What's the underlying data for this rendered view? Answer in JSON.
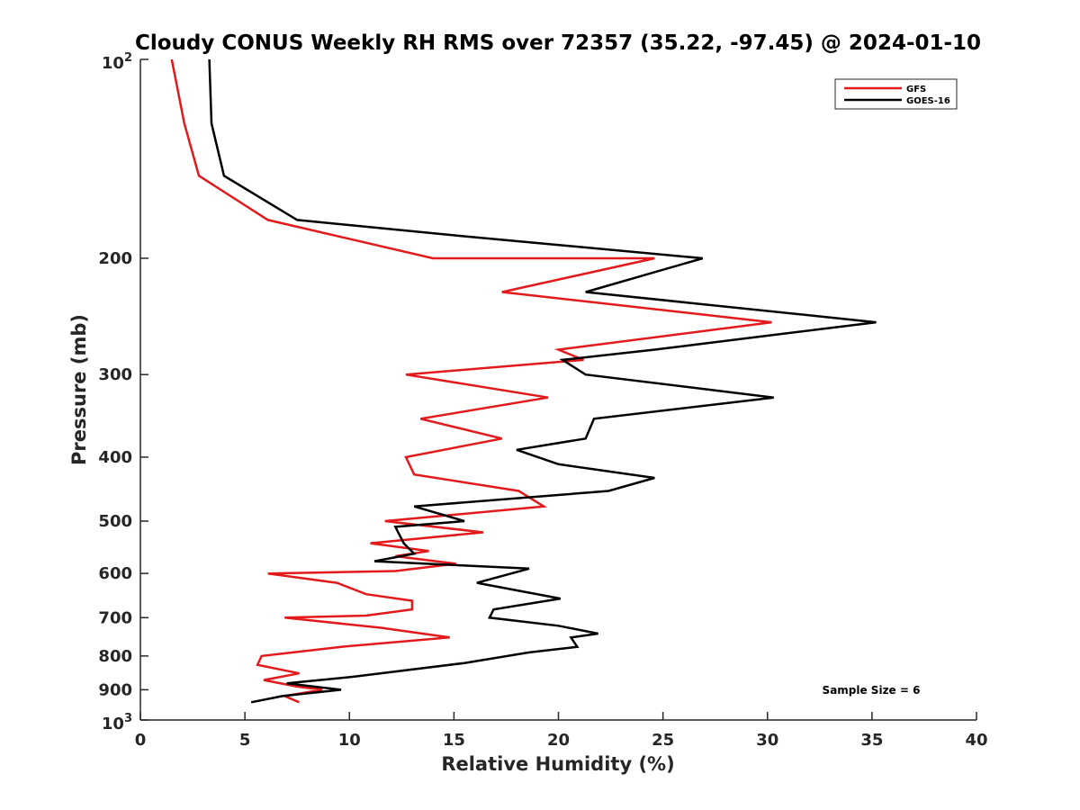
{
  "chart_data": {
    "type": "line",
    "title": "Cloudy CONUS Weekly RH RMS over 72357 (35.22, -97.45) @ 2024-01-10",
    "xlabel": "Relative Humidity (%)",
    "ylabel": "Pressure (mb)",
    "xlim": [
      0,
      40
    ],
    "ylim": [
      100,
      1000
    ],
    "y_scale": "log",
    "y_reversed": true,
    "grid": false,
    "legend_position": "top-right",
    "x_ticks": [
      0,
      5,
      10,
      15,
      20,
      25,
      30,
      35,
      40
    ],
    "x_tick_labels": [
      "0",
      "5",
      "10",
      "15",
      "20",
      "25",
      "30",
      "35",
      "40"
    ],
    "y_ticks": [
      200,
      300,
      400,
      500,
      600,
      700,
      800,
      900
    ],
    "y_tick_labels": [
      "200",
      "300",
      "400",
      "500",
      "600",
      "700",
      "800",
      "900"
    ],
    "y_extreme_labels": {
      "top_base": "10",
      "top_exp": "2",
      "bottom_base": "10",
      "bottom_exp": "3"
    },
    "annotation": "Sample Size = 6",
    "series": [
      {
        "name": "GFS",
        "color": "#e31a1c",
        "points": [
          [
            1.5,
            100
          ],
          [
            2.1,
            125
          ],
          [
            2.8,
            150
          ],
          [
            6.1,
            175
          ],
          [
            14,
            200
          ],
          [
            24.6,
            200
          ],
          [
            17.3,
            225
          ],
          [
            30.2,
            250
          ],
          [
            20,
            275
          ],
          [
            21.2,
            285
          ],
          [
            12.7,
            300
          ],
          [
            19.5,
            325
          ],
          [
            13.4,
            350
          ],
          [
            17.3,
            375
          ],
          [
            12.7,
            400
          ],
          [
            13.1,
            425
          ],
          [
            18.1,
            450
          ],
          [
            19.3,
            475
          ],
          [
            11.7,
            500
          ],
          [
            16.4,
            520
          ],
          [
            11,
            540
          ],
          [
            13.8,
            555
          ],
          [
            12.2,
            565
          ],
          [
            15.1,
            580
          ],
          [
            12.2,
            595
          ],
          [
            6.1,
            600
          ],
          [
            9.4,
            620
          ],
          [
            10.8,
            645
          ],
          [
            13,
            660
          ],
          [
            13,
            680
          ],
          [
            10.8,
            695
          ],
          [
            6.9,
            700
          ],
          [
            11.5,
            725
          ],
          [
            14.8,
            750
          ],
          [
            9.6,
            775
          ],
          [
            5.8,
            800
          ],
          [
            5.6,
            825
          ],
          [
            7.6,
            850
          ],
          [
            5.9,
            870
          ],
          [
            7.5,
            890
          ],
          [
            8.7,
            900
          ],
          [
            6.9,
            920
          ],
          [
            7.6,
            940
          ]
        ]
      },
      {
        "name": "GOES-16",
        "color": "#000000",
        "points": [
          [
            3.3,
            100
          ],
          [
            3.4,
            125
          ],
          [
            4,
            150
          ],
          [
            7.5,
            175
          ],
          [
            15.3,
            185
          ],
          [
            26.9,
            200
          ],
          [
            21.3,
            225
          ],
          [
            35.2,
            250
          ],
          [
            24.6,
            275
          ],
          [
            20.2,
            285
          ],
          [
            21.3,
            300
          ],
          [
            30.3,
            325
          ],
          [
            21.7,
            350
          ],
          [
            21.3,
            375
          ],
          [
            18.0,
            390
          ],
          [
            20.0,
            410
          ],
          [
            24.6,
            430
          ],
          [
            22.4,
            450
          ],
          [
            13.1,
            475
          ],
          [
            15.5,
            500
          ],
          [
            12.2,
            510
          ],
          [
            12.6,
            540
          ],
          [
            13.1,
            560
          ],
          [
            11.2,
            575
          ],
          [
            18.6,
            590
          ],
          [
            16.1,
            620
          ],
          [
            20.1,
            655
          ],
          [
            16.9,
            680
          ],
          [
            16.7,
            700
          ],
          [
            20.0,
            720
          ],
          [
            21.9,
            740
          ],
          [
            20.6,
            750
          ],
          [
            20.9,
            775
          ],
          [
            18.6,
            790
          ],
          [
            15.5,
            820
          ],
          [
            10.2,
            860
          ],
          [
            7.0,
            880
          ],
          [
            9.6,
            900
          ],
          [
            6.8,
            920
          ],
          [
            5.3,
            940
          ]
        ]
      }
    ]
  }
}
